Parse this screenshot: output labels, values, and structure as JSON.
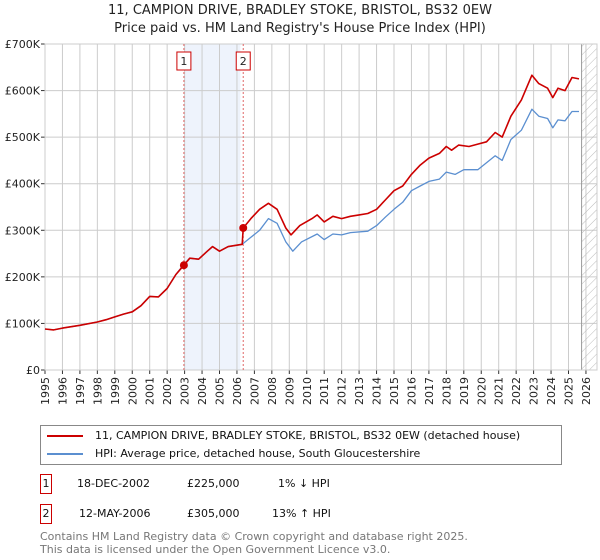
{
  "title": "11, CAMPION DRIVE, BRADLEY STOKE, BRISTOL, BS32 0EW",
  "subtitle": "Price paid vs. HM Land Registry's House Price Index (HPI)",
  "colors": {
    "property": "#cc0000",
    "hpi": "#5b8fd0",
    "shade": "#eef3fc",
    "grid": "#cccccc"
  },
  "chart_data": {
    "type": "line",
    "xlim": [
      1995,
      2026.6
    ],
    "ylim": [
      0,
      700000
    ],
    "x_ticks": [
      "1995",
      "1996",
      "1997",
      "1998",
      "1999",
      "2000",
      "2001",
      "2002",
      "2003",
      "2004",
      "2005",
      "2006",
      "2007",
      "2008",
      "2009",
      "2010",
      "2011",
      "2012",
      "2013",
      "2014",
      "2015",
      "2016",
      "2017",
      "2018",
      "2019",
      "2020",
      "2021",
      "2022",
      "2023",
      "2024",
      "2025",
      "2026"
    ],
    "y_ticks": [
      {
        "v": 0,
        "label": "£0"
      },
      {
        "v": 100000,
        "label": "£100K"
      },
      {
        "v": 200000,
        "label": "£200K"
      },
      {
        "v": 300000,
        "label": "£300K"
      },
      {
        "v": 400000,
        "label": "£400K"
      },
      {
        "v": 500000,
        "label": "£500K"
      },
      {
        "v": 600000,
        "label": "£600K"
      },
      {
        "v": 700000,
        "label": "£700K"
      }
    ],
    "grid": true,
    "shaded_range": [
      2003.0,
      2006.2
    ],
    "forecast_hatch_from": 2025.75,
    "series": [
      {
        "name": "11, CAMPION DRIVE, BRADLEY STOKE, BRISTOL, BS32 0EW (detached house)",
        "points": [
          [
            1995,
            88
          ],
          [
            1995.5,
            86
          ],
          [
            1996,
            90
          ],
          [
            1997,
            96
          ],
          [
            1998,
            103
          ],
          [
            1998.5,
            108
          ],
          [
            1999,
            114
          ],
          [
            1999.5,
            120
          ],
          [
            2000,
            125
          ],
          [
            2000.5,
            138
          ],
          [
            2001,
            158
          ],
          [
            2001.5,
            157
          ],
          [
            2002,
            175
          ],
          [
            2002.5,
            205
          ],
          [
            2002.96,
            225
          ],
          [
            2003.3,
            240
          ],
          [
            2003.8,
            238
          ],
          [
            2004.3,
            255
          ],
          [
            2004.6,
            265
          ],
          [
            2005,
            255
          ],
          [
            2005.5,
            265
          ],
          [
            2006.3,
            270
          ],
          [
            2006.36,
            305
          ],
          [
            2006.8,
            325
          ],
          [
            2007.3,
            345
          ],
          [
            2007.8,
            358
          ],
          [
            2008.3,
            345
          ],
          [
            2008.8,
            305
          ],
          [
            2009.1,
            290
          ],
          [
            2009.6,
            310
          ],
          [
            2010.3,
            325
          ],
          [
            2010.6,
            333
          ],
          [
            2011,
            318
          ],
          [
            2011.5,
            330
          ],
          [
            2012,
            325
          ],
          [
            2012.5,
            330
          ],
          [
            2013,
            333
          ],
          [
            2013.5,
            336
          ],
          [
            2014,
            345
          ],
          [
            2014.5,
            365
          ],
          [
            2015,
            385
          ],
          [
            2015.5,
            395
          ],
          [
            2016,
            420
          ],
          [
            2016.5,
            440
          ],
          [
            2017,
            455
          ],
          [
            2017.6,
            465
          ],
          [
            2018,
            480
          ],
          [
            2018.3,
            472
          ],
          [
            2018.7,
            483
          ],
          [
            2019.3,
            480
          ],
          [
            2019.8,
            485
          ],
          [
            2020.3,
            490
          ],
          [
            2020.8,
            510
          ],
          [
            2021.2,
            500
          ],
          [
            2021.7,
            545
          ],
          [
            2022.3,
            580
          ],
          [
            2022.9,
            633
          ],
          [
            2023.3,
            615
          ],
          [
            2023.8,
            605
          ],
          [
            2024.1,
            585
          ],
          [
            2024.4,
            605
          ],
          [
            2024.8,
            600
          ],
          [
            2025.2,
            628
          ],
          [
            2025.6,
            625
          ]
        ]
      },
      {
        "name": "HPI: Average price, detached house, South Gloucestershire",
        "points": [
          [
            1995,
            88
          ],
          [
            1995.5,
            86
          ],
          [
            1996,
            90
          ],
          [
            1997,
            96
          ],
          [
            1998,
            103
          ],
          [
            1998.5,
            108
          ],
          [
            1999,
            114
          ],
          [
            1999.5,
            120
          ],
          [
            2000,
            125
          ],
          [
            2000.5,
            138
          ],
          [
            2001,
            158
          ],
          [
            2001.5,
            157
          ],
          [
            2002,
            175
          ],
          [
            2002.5,
            205
          ],
          [
            2002.96,
            227
          ],
          [
            2003.3,
            240
          ],
          [
            2003.8,
            238
          ],
          [
            2004.3,
            255
          ],
          [
            2004.6,
            265
          ],
          [
            2005,
            255
          ],
          [
            2005.5,
            265
          ],
          [
            2006.3,
            270
          ],
          [
            2006.8,
            285
          ],
          [
            2007.3,
            300
          ],
          [
            2007.8,
            325
          ],
          [
            2008.3,
            315
          ],
          [
            2008.8,
            275
          ],
          [
            2009.2,
            255
          ],
          [
            2009.7,
            275
          ],
          [
            2010.6,
            292
          ],
          [
            2011,
            280
          ],
          [
            2011.5,
            292
          ],
          [
            2012,
            290
          ],
          [
            2012.5,
            295
          ],
          [
            2013.5,
            298
          ],
          [
            2014,
            310
          ],
          [
            2014.5,
            328
          ],
          [
            2015,
            345
          ],
          [
            2015.5,
            360
          ],
          [
            2016,
            385
          ],
          [
            2016.5,
            395
          ],
          [
            2017,
            405
          ],
          [
            2017.6,
            410
          ],
          [
            2018,
            425
          ],
          [
            2018.5,
            420
          ],
          [
            2019,
            430
          ],
          [
            2019.8,
            430
          ],
          [
            2020.3,
            445
          ],
          [
            2020.8,
            460
          ],
          [
            2021.2,
            450
          ],
          [
            2021.7,
            495
          ],
          [
            2022.3,
            515
          ],
          [
            2022.9,
            560
          ],
          [
            2023.3,
            545
          ],
          [
            2023.8,
            540
          ],
          [
            2024.1,
            520
          ],
          [
            2024.4,
            537
          ],
          [
            2024.8,
            535
          ],
          [
            2025.2,
            555
          ],
          [
            2025.6,
            555
          ]
        ]
      }
    ],
    "value_unit": "thousand GBP",
    "sales": [
      {
        "label": "1",
        "x": 2002.96,
        "y": 225
      },
      {
        "label": "2",
        "x": 2006.36,
        "y": 305
      }
    ]
  },
  "legend": {
    "property": "11, CAMPION DRIVE, BRADLEY STOKE, BRISTOL, BS32 0EW (detached house)",
    "hpi": "HPI: Average price, detached house, South Gloucestershire"
  },
  "transactions": [
    {
      "num": "1",
      "date": "18-DEC-2002",
      "price": "£225,000",
      "hpi": "1% ↓ HPI"
    },
    {
      "num": "2",
      "date": "12-MAY-2006",
      "price": "£305,000",
      "hpi": "13% ↑ HPI"
    }
  ],
  "footer": {
    "line1": "Contains HM Land Registry data © Crown copyright and database right 2025.",
    "line2": "This data is licensed under the Open Government Licence v3.0."
  }
}
